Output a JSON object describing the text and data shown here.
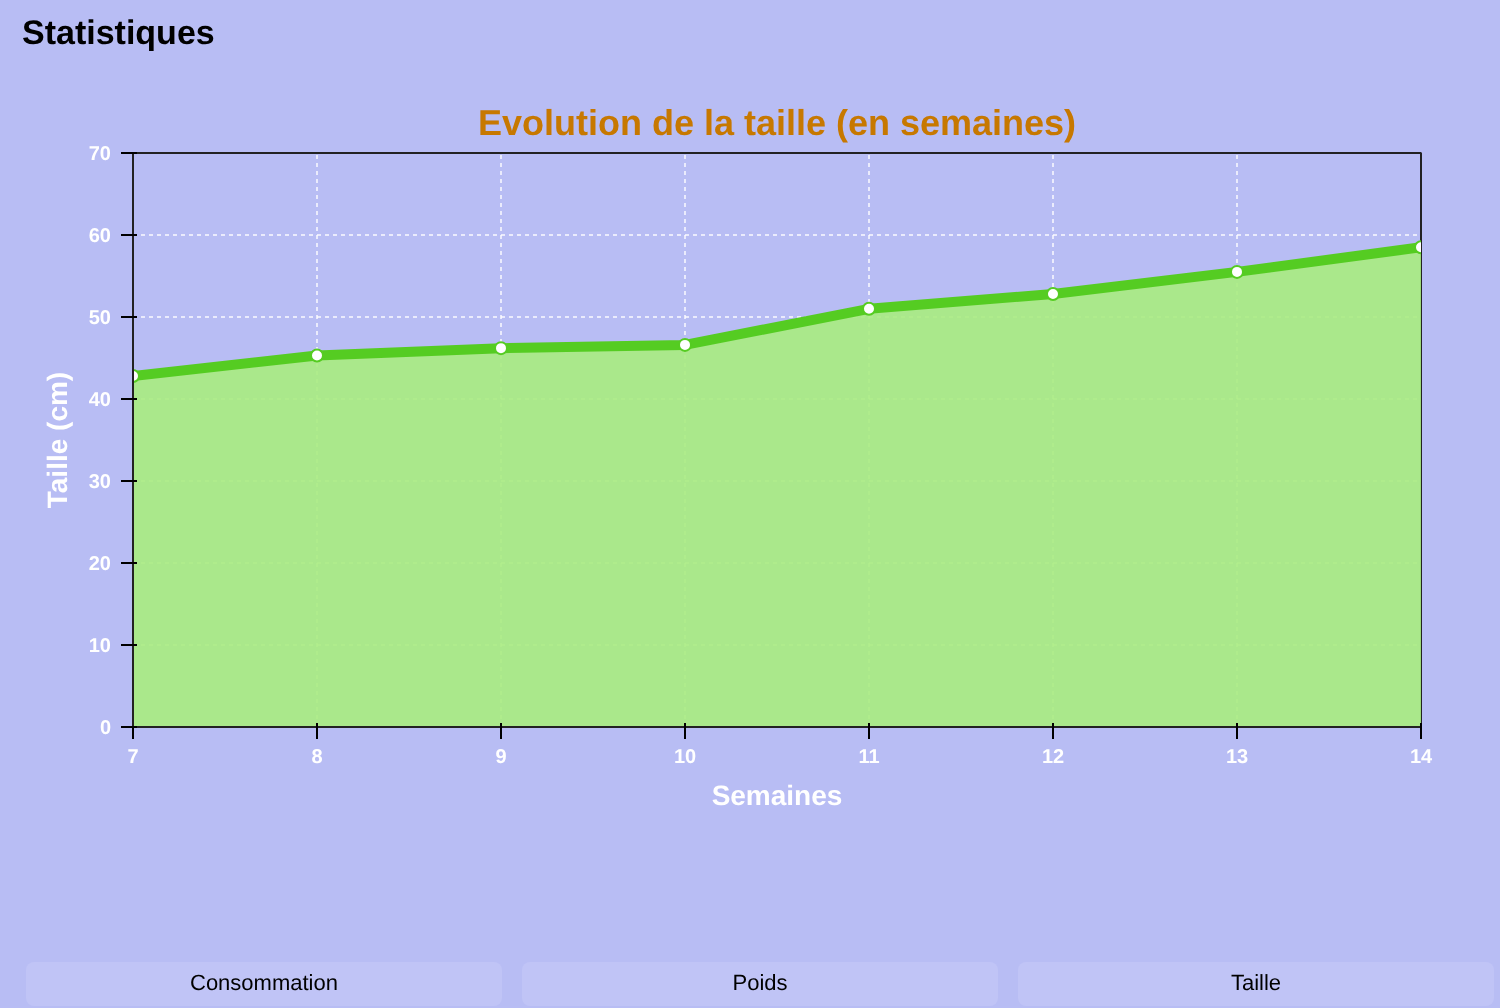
{
  "chart_data": {
    "type": "area",
    "title": "Evolution de la taille (en semaines)",
    "xlabel": "Semaines",
    "ylabel": "Taille (cm)",
    "x": [
      7,
      8,
      9,
      10,
      11,
      12,
      13,
      14
    ],
    "series": [
      {
        "color": "#55cc22",
        "values": [
          42.8,
          45.3,
          46.2,
          46.6,
          51.0,
          52.8,
          55.5,
          58.5
        ]
      }
    ],
    "xlim": [
      7,
      14
    ],
    "ylim": [
      0,
      70
    ],
    "xticks": [
      7,
      8,
      9,
      10,
      11,
      12,
      13,
      14
    ],
    "yticks": [
      0,
      10,
      20,
      30,
      40,
      50,
      60,
      70
    ],
    "grid": true,
    "marker": "circle",
    "annotations": [
      "Statistiques",
      "Consommation",
      "Poids",
      "Taille"
    ]
  }
}
